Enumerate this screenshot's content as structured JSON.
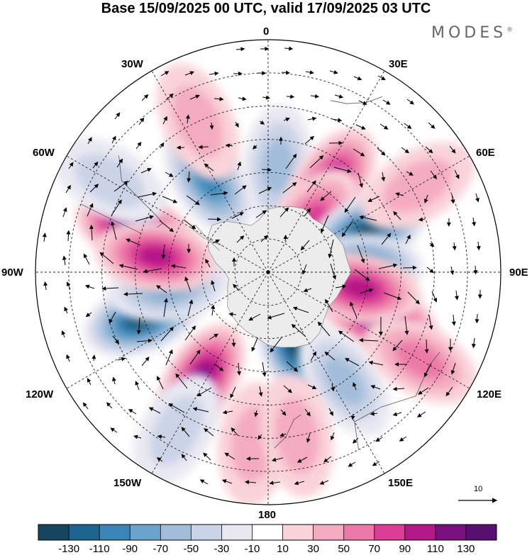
{
  "title": "Base 15/09/2025 00 UTC, valid 17/09/2025 03 UTC",
  "brand": "MODES",
  "brand_mark": "®",
  "longitude_labels": {
    "lon_0": "0",
    "lon_30e": "30E",
    "lon_60e": "60E",
    "lon_90e": "90E",
    "lon_120e": "120E",
    "lon_150e": "150E",
    "lon_180": "180",
    "lon_150w": "150W",
    "lon_120w": "120W",
    "lon_90w": "90W",
    "lon_60w": "60W",
    "lon_30w": "30W"
  },
  "reference_vector": {
    "value": "10"
  },
  "colorbar": {
    "colors": [
      "#16455f",
      "#1d6590",
      "#3a86b8",
      "#6aa3cb",
      "#a2bdda",
      "#cbd3e7",
      "#e8e8f2",
      "#ffffff",
      "#f9d3d9",
      "#f4abc1",
      "#ec79a7",
      "#dd3d96",
      "#b51887",
      "#7a0f7f",
      "#571071"
    ],
    "tick_labels": [
      "-130",
      "-110",
      "-90",
      "-70",
      "-50",
      "-30",
      "-10",
      "10",
      "30",
      "50",
      "70",
      "90",
      "110",
      "130"
    ]
  },
  "anomaly_centers": [
    {
      "lon": 5,
      "lat": -58,
      "value": -55
    },
    {
      "lon": 35,
      "lat": -57,
      "value": 95
    },
    {
      "lon": 40,
      "lat": -70,
      "value": 60
    },
    {
      "lon": -33,
      "lat": -57,
      "value": -85
    },
    {
      "lon": -25,
      "lat": -40,
      "value": 30
    },
    {
      "lon": 68,
      "lat": -58,
      "value": -120
    },
    {
      "lon": 88,
      "lat": -62,
      "value": -100
    },
    {
      "lon": 112,
      "lat": -54,
      "value": 125
    },
    {
      "lon": 100,
      "lat": -62,
      "value": 80
    },
    {
      "lon": 160,
      "lat": -67,
      "value": -125
    },
    {
      "lon": 145,
      "lat": -50,
      "value": -40
    },
    {
      "lon": -148,
      "lat": -52,
      "value": 105
    },
    {
      "lon": -110,
      "lat": -50,
      "value": -125
    },
    {
      "lon": -98,
      "lat": -60,
      "value": -70
    },
    {
      "lon": -72,
      "lat": -48,
      "value": 120
    },
    {
      "lon": -82,
      "lat": -56,
      "value": 80
    },
    {
      "lon": -175,
      "lat": -38,
      "value": 35
    },
    {
      "lon": -150,
      "lat": -35,
      "value": -30
    },
    {
      "lon": 170,
      "lat": -40,
      "value": 25
    },
    {
      "lon": 120,
      "lat": -37,
      "value": 45
    },
    {
      "lon": 60,
      "lat": -38,
      "value": 25
    },
    {
      "lon": -60,
      "lat": -35,
      "value": -20
    }
  ]
}
